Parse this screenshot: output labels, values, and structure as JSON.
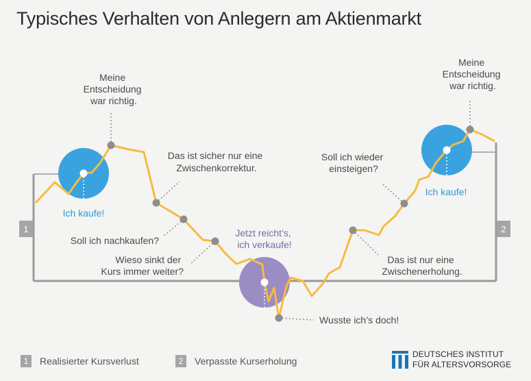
{
  "title": "Typisches Verhalten von Anlegern am Aktienmarkt",
  "markers": {
    "left": "1",
    "right": "2"
  },
  "annotations": {
    "buy1": "Ich kaufe!",
    "right1": [
      "Meine",
      "Entscheidung",
      "war richtig."
    ],
    "correction": [
      "Das ist sicher nur eine",
      "Zwischenkorrektur."
    ],
    "buy_more": "Soll ich nachkaufen?",
    "why_sinking": [
      "Wieso sinkt der",
      "Kurs immer weiter?"
    ],
    "sell": [
      "Jetzt reicht’s,",
      "ich verkaufe!"
    ],
    "knew_it": "Wusste ich’s doch!",
    "recovery": [
      "Das ist nur eine",
      "Zwischenerholung."
    ],
    "reenter": [
      "Soll ich wieder",
      "einsteigen?"
    ],
    "buy2": "Ich kaufe!",
    "right2": [
      "Meine",
      "Entscheidung",
      "war richtig."
    ]
  },
  "legend": [
    {
      "num": "1",
      "label": "Realisierter Kursverlust"
    },
    {
      "num": "2",
      "label": "Verpasste Kurserholung"
    }
  ],
  "logo": {
    "line1": "DEUTSCHES INSTITUT",
    "line2": "FÜR ALTERSVORSORGE"
  },
  "colors": {
    "line": "#f6bb42",
    "buy_circle": "#3aa3df",
    "sell_circle": "#9b8cc4",
    "dot": "#8e8e8e",
    "frame": "#9a9a9a",
    "blue_text": "#2f9bd5",
    "purple_text": "#7a6aa8"
  }
}
